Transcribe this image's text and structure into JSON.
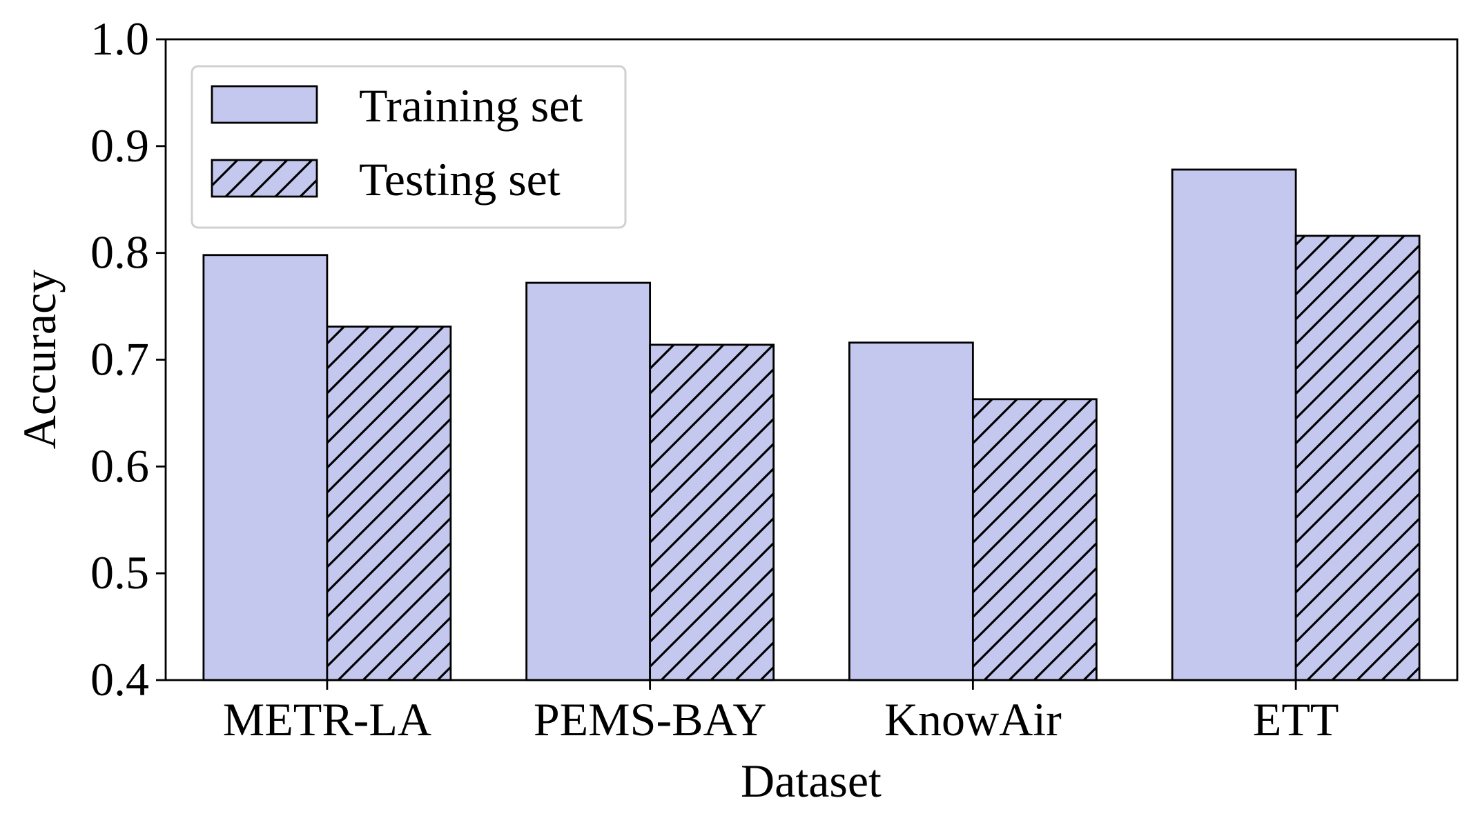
{
  "chart_data": {
    "type": "bar",
    "title": "",
    "xlabel": "Dataset",
    "ylabel": "Accuracy",
    "ylim": [
      0.4,
      1.0
    ],
    "yticks": [
      "0.4",
      "0.5",
      "0.6",
      "0.7",
      "0.8",
      "0.9",
      "1.0"
    ],
    "categories": [
      "METR-LA",
      "PEMS-BAY",
      "KnowAir",
      "ETT"
    ],
    "series": [
      {
        "name": "Training set",
        "pattern": "solid",
        "values": [
          0.798,
          0.772,
          0.716,
          0.878
        ]
      },
      {
        "name": "Testing set",
        "pattern": "hatched",
        "values": [
          0.731,
          0.714,
          0.663,
          0.816
        ]
      }
    ],
    "bar_color": "#c5c8ee",
    "edge_color": "#000000",
    "legend_position": "top-left",
    "grid": false
  }
}
